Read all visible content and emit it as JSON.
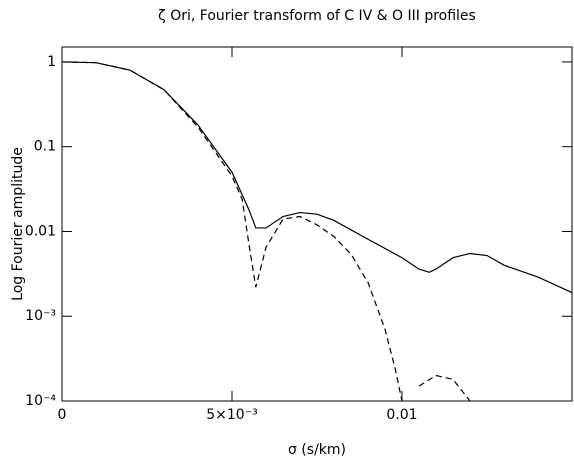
{
  "chart_data": {
    "type": "line",
    "title": "ζ Ori, Fourier transform of C IV & O III profiles",
    "xlabel": "σ (s/km)",
    "ylabel": "Log Fourier amplitude",
    "xlim": [
      0,
      0.015
    ],
    "ylim": [
      0.0001,
      1.5
    ],
    "yscale": "log",
    "xticks": [
      0,
      {
        "value": 0.005,
        "label": "5×10⁻³"
      },
      0.01
    ],
    "yticks": [
      1,
      0.1,
      0.01,
      {
        "value": 0.001,
        "label": "10⁻³"
      },
      {
        "value": 0.0001,
        "label": "10⁻⁴"
      }
    ],
    "series": [
      {
        "color": "#000000",
        "dashed": false,
        "x": [
          0,
          0.001,
          0.002,
          0.003,
          0.004,
          0.005,
          0.0055,
          0.0057,
          0.006,
          0.0065,
          0.007,
          0.0075,
          0.008,
          0.009,
          0.01,
          0.0105,
          0.0108,
          0.011,
          0.0115,
          0.012,
          0.0125,
          0.013,
          0.014,
          0.015
        ],
        "values": [
          1,
          0.98,
          0.8,
          0.47,
          0.18,
          0.05,
          0.018,
          0.011,
          0.011,
          0.015,
          0.0167,
          0.016,
          0.0135,
          0.0081,
          0.0049,
          0.0036,
          0.0033,
          0.0036,
          0.0049,
          0.0055,
          0.0052,
          0.004,
          0.0029,
          0.0019
        ]
      },
      {
        "color": "#000000",
        "dashed": true,
        "x": [
          0,
          0.001,
          0.002,
          0.003,
          0.004,
          0.005,
          0.0053,
          0.0055,
          0.0057,
          0.006,
          0.0065,
          0.007,
          0.0075,
          0.008,
          0.0085,
          0.009,
          0.0095,
          0.0098,
          0.01,
          0.0102,
          0.0105,
          0.011,
          0.0115,
          0.012
        ],
        "values": [
          1,
          0.98,
          0.8,
          0.47,
          0.17,
          0.045,
          0.024,
          0.007,
          0.0022,
          0.0065,
          0.014,
          0.015,
          0.012,
          0.0087,
          0.0054,
          0.0025,
          0.0007,
          0.00024,
          0.0001,
          null,
          0.00015,
          0.0002,
          0.00018,
          0.0001
        ]
      }
    ]
  }
}
